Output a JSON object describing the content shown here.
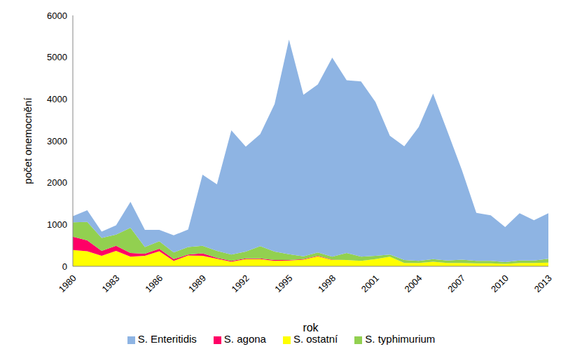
{
  "chart_data": {
    "type": "area",
    "stacked": true,
    "x_label": "rok",
    "y_label": "počet onemocnění",
    "x": [
      1980,
      1981,
      1982,
      1983,
      1984,
      1985,
      1986,
      1987,
      1988,
      1989,
      1990,
      1991,
      1992,
      1993,
      1994,
      1995,
      1996,
      1997,
      1998,
      1999,
      2000,
      2001,
      2002,
      2003,
      2004,
      2005,
      2006,
      2007,
      2008,
      2009,
      2010,
      2011,
      2012,
      2013
    ],
    "xlim": [
      1980,
      2013
    ],
    "xticks": [
      1980,
      1983,
      1986,
      1989,
      1992,
      1995,
      1998,
      2001,
      2004,
      2007,
      2010,
      2013
    ],
    "ylim": [
      0,
      6000
    ],
    "yticks": [
      0,
      1000,
      2000,
      3000,
      4000,
      5000,
      6000
    ],
    "grid": false,
    "legend": "bottom",
    "series": [
      {
        "name": "S. ostatní",
        "color": "#FFFF00",
        "values": [
          390,
          360,
          250,
          370,
          230,
          250,
          360,
          130,
          260,
          250,
          180,
          110,
          170,
          170,
          130,
          140,
          160,
          240,
          150,
          150,
          130,
          170,
          230,
          80,
          80,
          110,
          80,
          80,
          70,
          70,
          60,
          80,
          80,
          90
        ]
      },
      {
        "name": "S. agona",
        "color": "#FF0066",
        "values": [
          320,
          260,
          120,
          120,
          90,
          50,
          60,
          40,
          20,
          60,
          20,
          20,
          20,
          20,
          20,
          10,
          10,
          10,
          10,
          0,
          0,
          0,
          0,
          0,
          0,
          0,
          0,
          0,
          0,
          0,
          0,
          0,
          0,
          0
        ]
      },
      {
        "name": "S. typhimurium",
        "color": "#92D050",
        "values": [
          340,
          440,
          310,
          270,
          600,
          160,
          180,
          160,
          180,
          180,
          170,
          150,
          160,
          290,
          200,
          140,
          70,
          80,
          70,
          170,
          100,
          80,
          50,
          70,
          50,
          60,
          60,
          80,
          60,
          60,
          40,
          60,
          60,
          90
        ]
      },
      {
        "name": "S. Enteritidis",
        "color": "#8EB4E3",
        "values": [
          150,
          280,
          150,
          220,
          620,
          410,
          270,
          410,
          420,
          1700,
          1590,
          2970,
          2510,
          2680,
          3530,
          5130,
          3860,
          4020,
          4760,
          4130,
          4190,
          3680,
          2840,
          2720,
          3200,
          3960,
          3080,
          2140,
          1150,
          1090,
          840,
          1130,
          960,
          1090
        ]
      }
    ]
  }
}
